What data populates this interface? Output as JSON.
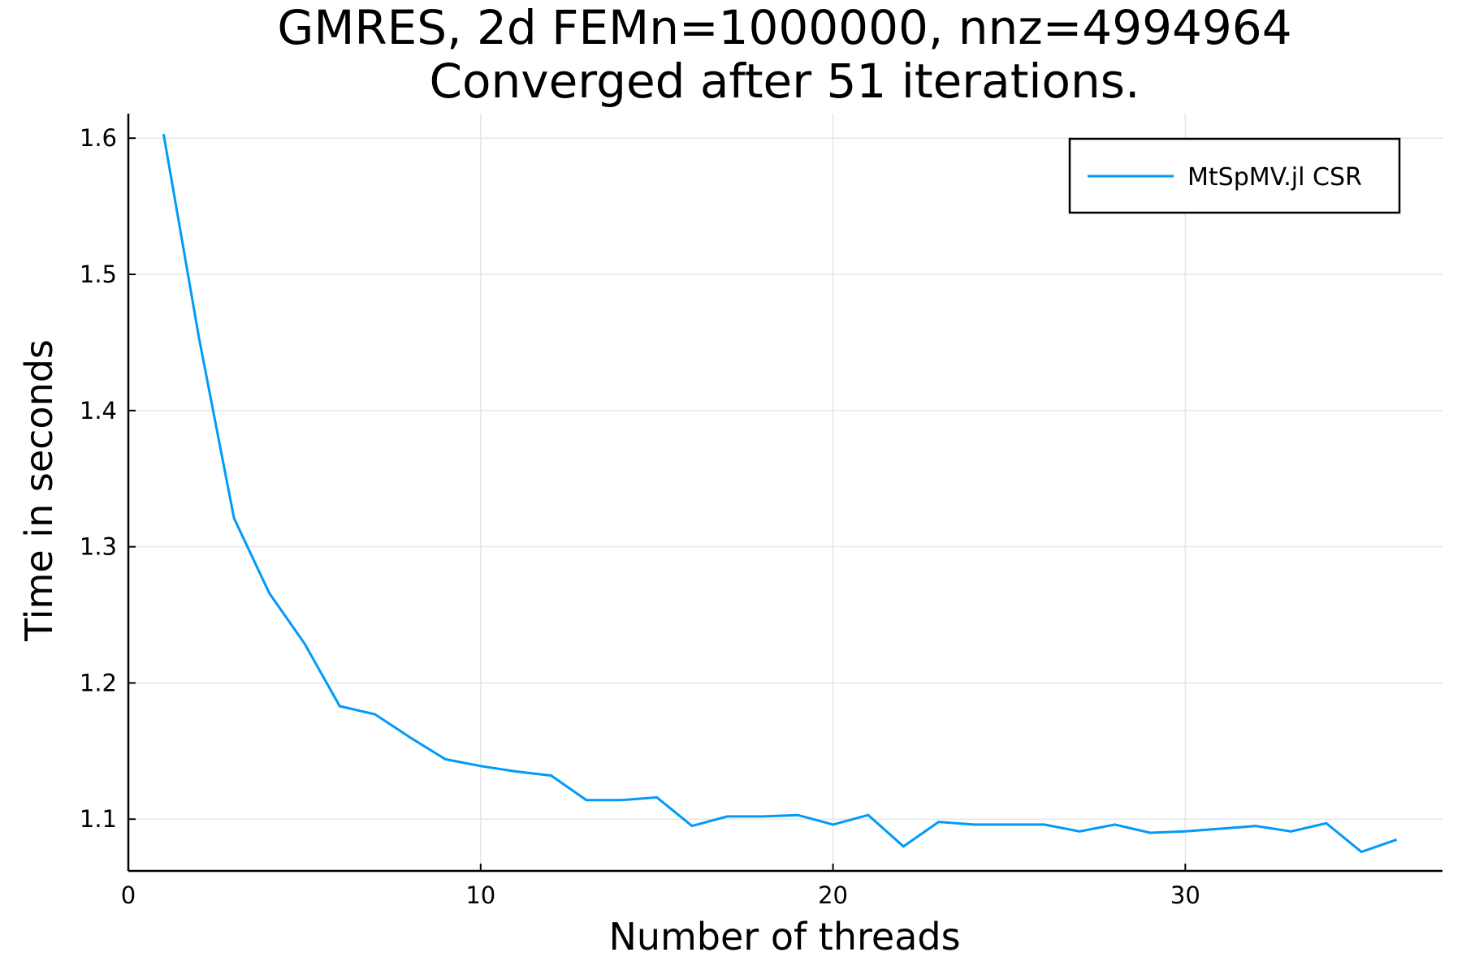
{
  "chart_data": {
    "type": "line",
    "title_line1": "GMRES, 2d FEMn=1000000, nnz=4994964",
    "title_line2": "Converged after 51 iterations.",
    "xlabel": "Number of threads",
    "ylabel": "Time in seconds",
    "xlim": [
      0,
      37.3
    ],
    "ylim": [
      1.062,
      1.618
    ],
    "xticks": [
      0,
      10,
      20,
      30
    ],
    "yticks": [
      1.1,
      1.2,
      1.3,
      1.4,
      1.5,
      1.6
    ],
    "grid": true,
    "legend_position": "top-right",
    "series": [
      {
        "name": "MtSpMV.jl CSR",
        "color": "#009af9",
        "x": [
          1,
          2,
          3,
          4,
          5,
          6,
          7,
          8,
          9,
          10,
          11,
          12,
          13,
          14,
          15,
          16,
          17,
          18,
          19,
          20,
          21,
          22,
          23,
          24,
          25,
          26,
          27,
          28,
          29,
          30,
          31,
          32,
          33,
          34,
          35,
          36
        ],
        "values": [
          1.603,
          1.454,
          1.321,
          1.266,
          1.229,
          1.183,
          1.177,
          1.16,
          1.144,
          1.139,
          1.135,
          1.132,
          1.114,
          1.114,
          1.116,
          1.095,
          1.102,
          1.102,
          1.103,
          1.096,
          1.103,
          1.08,
          1.098,
          1.096,
          1.096,
          1.096,
          1.091,
          1.096,
          1.09,
          1.091,
          1.093,
          1.095,
          1.091,
          1.097,
          1.076,
          1.085
        ]
      }
    ]
  }
}
